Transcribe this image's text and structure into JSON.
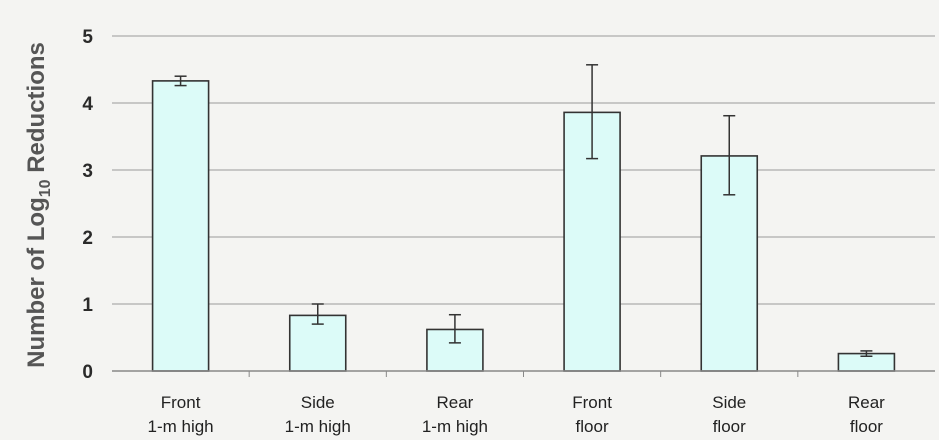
{
  "chart_data": {
    "type": "bar",
    "ylabel_main": "Number of Log",
    "ylabel_sub": "10",
    "ylabel_tail": " Reductions",
    "xlabel": "",
    "ylim": [
      0,
      5
    ],
    "yticks": [
      "0",
      "1",
      "2",
      "3",
      "4",
      "5"
    ],
    "grid": true,
    "categories": [
      [
        "Front",
        "1-m high"
      ],
      [
        "Side",
        "1-m high"
      ],
      [
        "Rear",
        "1-m high"
      ],
      [
        "Front",
        "floor"
      ],
      [
        "Side",
        "floor"
      ],
      [
        "Rear",
        "floor"
      ]
    ],
    "values": [
      4.33,
      0.83,
      0.62,
      3.86,
      3.21,
      0.26
    ],
    "error_low": [
      4.26,
      0.7,
      0.42,
      3.17,
      2.63,
      0.22
    ],
    "error_high": [
      4.4,
      1.0,
      0.84,
      4.57,
      3.81,
      0.3
    ],
    "colors": {
      "bar_fill": "#dcfbf8",
      "bar_stroke": "#333333",
      "grid": "#9a9a9a",
      "axis": "#888888"
    }
  }
}
